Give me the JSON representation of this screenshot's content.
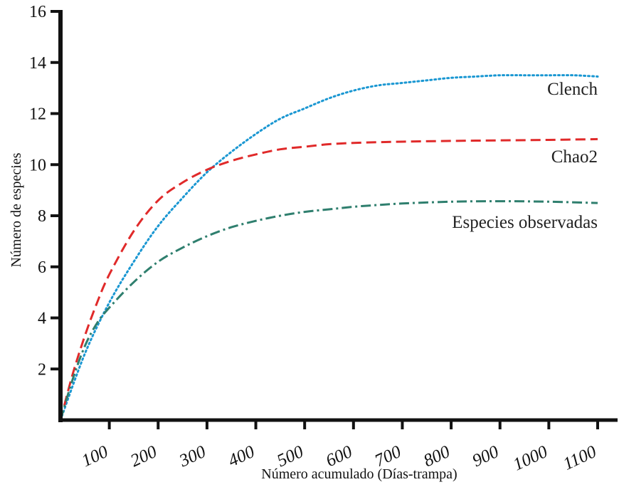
{
  "chart_data": {
    "type": "line",
    "xlabel": "Número acumulado (Días-trampa)",
    "ylabel": "Número de especies",
    "xlim": [
      0,
      1100
    ],
    "ylim": [
      0,
      16
    ],
    "x_ticks": [
      100,
      200,
      300,
      400,
      500,
      600,
      700,
      800,
      900,
      1000,
      1100
    ],
    "x_tick_labels": [
      "100",
      "200",
      "300",
      "400",
      "500",
      "600",
      "700",
      "800",
      "900",
      "1000",
      "1100"
    ],
    "y_ticks": [
      2,
      4,
      6,
      8,
      10,
      12,
      14,
      16
    ],
    "y_tick_labels": [
      "2",
      "4",
      "6",
      "8",
      "10",
      "12",
      "14",
      "16"
    ],
    "grid": false,
    "legend": "inline labels at right end of each curve",
    "series": [
      {
        "name": "Clench",
        "style": "dotted",
        "color": "#1a97d2",
        "x": [
          0,
          50,
          100,
          150,
          200,
          250,
          300,
          350,
          400,
          450,
          500,
          550,
          600,
          650,
          700,
          750,
          800,
          850,
          900,
          950,
          1000,
          1050,
          1100
        ],
        "y": [
          0,
          2.6,
          4.6,
          6.2,
          7.6,
          8.7,
          9.7,
          10.5,
          11.2,
          11.8,
          12.2,
          12.6,
          12.9,
          13.1,
          13.2,
          13.3,
          13.4,
          13.45,
          13.5,
          13.5,
          13.5,
          13.5,
          13.45
        ]
      },
      {
        "name": "Chao2",
        "style": "dashed",
        "color": "#e02a2a",
        "x": [
          0,
          25,
          50,
          75,
          100,
          150,
          200,
          250,
          300,
          350,
          400,
          450,
          500,
          550,
          600,
          650,
          700,
          800,
          900,
          1000,
          1100
        ],
        "y": [
          0,
          1.8,
          3.3,
          4.6,
          5.7,
          7.4,
          8.6,
          9.3,
          9.8,
          10.15,
          10.4,
          10.6,
          10.7,
          10.8,
          10.85,
          10.88,
          10.9,
          10.93,
          10.95,
          10.97,
          11.0
        ]
      },
      {
        "name": "Especies observadas",
        "style": "dash-dot",
        "color": "#2f7f6e",
        "x": [
          0,
          25,
          50,
          75,
          100,
          150,
          200,
          250,
          300,
          350,
          400,
          450,
          500,
          550,
          600,
          650,
          700,
          800,
          900,
          1000,
          1100
        ],
        "y": [
          0,
          1.6,
          2.9,
          3.8,
          4.4,
          5.4,
          6.2,
          6.75,
          7.2,
          7.55,
          7.8,
          8.0,
          8.15,
          8.25,
          8.35,
          8.42,
          8.48,
          8.55,
          8.57,
          8.55,
          8.5
        ]
      }
    ]
  }
}
